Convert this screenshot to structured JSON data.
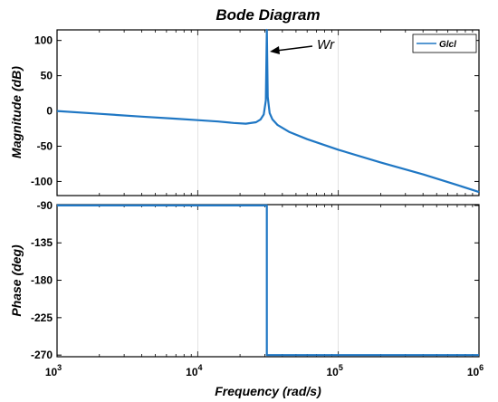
{
  "chart_data": {
    "type": "line",
    "title": "Bode Diagram",
    "xlabel": "Frequency  (rad/s)",
    "x_scale": "log",
    "xlim": [
      1000,
      1000000
    ],
    "x_ticks": [
      1000,
      10000,
      100000,
      1000000
    ],
    "x_tick_labels": [
      {
        "base": "10",
        "exp": "3"
      },
      {
        "base": "10",
        "exp": "4"
      },
      {
        "base": "10",
        "exp": "5"
      },
      {
        "base": "10",
        "exp": "6"
      }
    ],
    "line_color": "#1f77c4",
    "legend": {
      "entries": [
        "Glcl"
      ],
      "placement": "top-right"
    },
    "annotation": {
      "text": "Wr",
      "x": 31000,
      "y": 85
    },
    "magnitude": {
      "ylabel": "Magnitude (dB)",
      "ylim": [
        -120,
        115
      ],
      "y_ticks": [
        100,
        50,
        0,
        -50,
        -100
      ],
      "y_tick_labels": [
        "100",
        "50",
        "0",
        "-50",
        "-100"
      ],
      "series": [
        {
          "name": "Glcl",
          "x": [
            1000,
            2000,
            4000,
            7000,
            10000,
            14000,
            18000,
            22000,
            26000,
            28000,
            29500,
            30500,
            31000,
            31500,
            32500,
            34000,
            37000,
            45000,
            60000,
            100000,
            200000,
            400000,
            700000,
            1000000
          ],
          "y": [
            0,
            -4,
            -8,
            -11,
            -13,
            -15,
            -17,
            -18,
            -16,
            -12,
            -5,
            15,
            115,
            20,
            -3,
            -12,
            -20,
            -30,
            -40,
            -55,
            -73,
            -90,
            -105,
            -115
          ]
        }
      ]
    },
    "phase": {
      "ylabel": "Phase (deg)",
      "ylim": [
        -272,
        -89
      ],
      "y_ticks": [
        -90,
        -135,
        -180,
        -225,
        -270
      ],
      "y_tick_labels": [
        "-90",
        "-135",
        "-180",
        "-225",
        "-270"
      ],
      "series": [
        {
          "name": "Glcl",
          "x": [
            1000,
            31000,
            31000,
            1000000
          ],
          "y": [
            -90,
            -90,
            -270,
            -270
          ]
        }
      ]
    }
  }
}
